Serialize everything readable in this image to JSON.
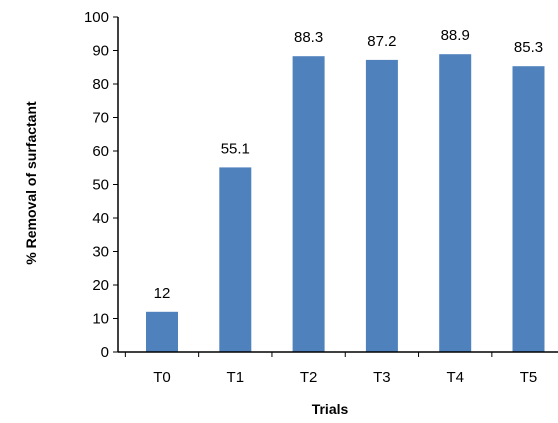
{
  "chart_data": {
    "type": "bar",
    "title": "",
    "xlabel": "Trials",
    "ylabel": "% Removal of surfactant",
    "categories": [
      "T0",
      "T1",
      "T2",
      "T3",
      "T4",
      "T5"
    ],
    "values": [
      12,
      55.1,
      88.3,
      87.2,
      88.9,
      85.3
    ],
    "value_labels": [
      "12",
      "55.1",
      "88.3",
      "87.2",
      "88.9",
      "85.3"
    ],
    "ylim": [
      0,
      100
    ],
    "yticks": [
      0,
      10,
      20,
      30,
      40,
      50,
      60,
      70,
      80,
      90,
      100
    ],
    "ytick_labels": [
      "0",
      "10",
      "20",
      "30",
      "40",
      "50",
      "60",
      "70",
      "80",
      "90",
      "100"
    ],
    "grid": false,
    "legend": "none",
    "bar_color": "#4F81BD"
  }
}
